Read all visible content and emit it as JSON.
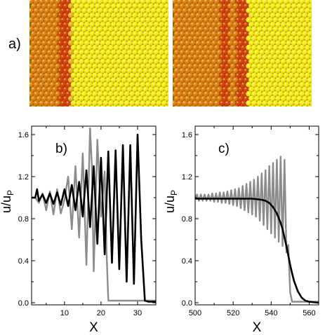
{
  "figure": {
    "panel_a_label": "a)",
    "panel_b_label": "b)",
    "panel_c_label": "c)"
  },
  "atom_panels": [
    {
      "name": "left",
      "stripes": [
        {
          "color": "#d07a12",
          "fraction": 0.22
        },
        {
          "color": "#c8420a",
          "fraction": 0.06
        },
        {
          "color": "#d8a818",
          "fraction": 0.02
        },
        {
          "color": "#e6da1a",
          "fraction": 0.7
        }
      ]
    },
    {
      "name": "right",
      "stripes": [
        {
          "color": "#d07a12",
          "fraction": 0.34
        },
        {
          "color": "#c8420a",
          "fraction": 0.06
        },
        {
          "color": "#d07a12",
          "fraction": 0.07
        },
        {
          "color": "#c8420a",
          "fraction": 0.06
        },
        {
          "color": "#e6da1a",
          "fraction": 0.47
        }
      ]
    }
  ],
  "chart_data": [
    {
      "type": "line",
      "panel": "b)",
      "xlabel": "X",
      "ylabel": "u/u",
      "ylabel_sub": "P",
      "xlim": [
        1,
        35
      ],
      "ylim": [
        -0.02,
        1.68
      ],
      "xticks": [
        10,
        20,
        30
      ],
      "yticks": [
        0.0,
        0.4,
        0.8,
        1.2,
        1.6
      ],
      "ytick_labels": [
        "0.0",
        "0.4",
        "0.8",
        "1.2",
        "1.6"
      ],
      "series": [
        {
          "color": "#8c8c8c",
          "x": [
            1,
            2,
            3,
            4,
            5,
            6,
            7,
            8,
            9,
            10,
            11,
            12,
            13,
            14,
            15,
            16,
            17,
            17.5,
            18,
            19,
            20,
            21,
            21.5,
            22,
            22.5,
            23,
            35
          ],
          "y": [
            1.0,
            1.0,
            0.95,
            1.04,
            0.88,
            1.06,
            0.84,
            1.08,
            0.85,
            0.98,
            1.2,
            0.7,
            1.3,
            0.62,
            1.42,
            0.36,
            1.66,
            1.3,
            0.3,
            1.55,
            0.82,
            1.25,
            0.5,
            0.02,
            0.02,
            0.02,
            0.02
          ]
        },
        {
          "color": "#000000",
          "x": [
            1,
            2,
            2.5,
            3,
            4,
            5,
            6,
            7,
            8,
            9,
            10,
            11,
            12,
            13,
            14,
            15,
            16,
            17,
            18,
            19,
            20,
            21,
            22,
            23,
            24,
            25,
            26,
            27,
            28,
            29,
            30,
            31,
            32,
            33,
            35
          ],
          "y": [
            1.0,
            1.0,
            1.08,
            0.97,
            1.03,
            0.95,
            1.04,
            0.94,
            1.05,
            0.93,
            1.08,
            0.92,
            1.12,
            0.88,
            1.15,
            0.82,
            1.26,
            0.72,
            1.3,
            0.56,
            1.38,
            0.46,
            1.44,
            0.38,
            1.45,
            0.32,
            1.5,
            0.2,
            1.5,
            0.18,
            1.6,
            0.6,
            0.02,
            0.01,
            0.01
          ]
        }
      ]
    },
    {
      "type": "line",
      "panel": "c)",
      "xlabel": "X",
      "ylabel": "u/u",
      "ylabel_sub": "P",
      "xlim": [
        500,
        565
      ],
      "ylim": [
        -0.02,
        1.68
      ],
      "xticks": [
        500,
        520,
        540,
        560
      ],
      "yticks": [
        0.0,
        0.4,
        0.8,
        1.2,
        1.6
      ],
      "ytick_labels": [
        "0.0",
        "0.4",
        "0.8",
        "1.2",
        "1.6"
      ],
      "series": [
        {
          "color": "#8c8c8c",
          "x": [
            500,
            501,
            502,
            503,
            504,
            505,
            506,
            507,
            508,
            509,
            510,
            511,
            512,
            513,
            514,
            515,
            516,
            517,
            518,
            519,
            520,
            521,
            522,
            523,
            524,
            525,
            526,
            527,
            528,
            529,
            530,
            531,
            532,
            533,
            534,
            535,
            536,
            537,
            538,
            539,
            540,
            541,
            542,
            543,
            544,
            545,
            546,
            547,
            548,
            549,
            550,
            551,
            565
          ],
          "y": [
            1.0,
            1.03,
            0.97,
            1.03,
            0.97,
            1.03,
            0.97,
            1.03,
            0.97,
            1.04,
            0.96,
            1.04,
            0.96,
            1.05,
            0.95,
            1.05,
            0.95,
            1.06,
            0.94,
            1.07,
            0.93,
            1.08,
            0.92,
            1.09,
            0.9,
            1.11,
            0.88,
            1.13,
            0.86,
            1.15,
            0.84,
            1.17,
            0.82,
            1.2,
            0.78,
            1.23,
            0.74,
            1.26,
            0.7,
            1.3,
            0.66,
            1.33,
            0.62,
            1.36,
            0.58,
            1.39,
            0.54,
            1.36,
            0.48,
            0.55,
            0.1,
            0.01,
            0.01
          ]
        },
        {
          "color": "#000000",
          "x": [
            500,
            520,
            530,
            535,
            537,
            539,
            541,
            543,
            545,
            546,
            547,
            548,
            549,
            550,
            551,
            552,
            554,
            556,
            558,
            560,
            565
          ],
          "y": [
            0.99,
            0.99,
            0.99,
            0.98,
            0.97,
            0.95,
            0.91,
            0.85,
            0.76,
            0.7,
            0.62,
            0.54,
            0.45,
            0.36,
            0.28,
            0.21,
            0.11,
            0.05,
            0.02,
            0.01,
            0.0
          ]
        }
      ]
    }
  ]
}
